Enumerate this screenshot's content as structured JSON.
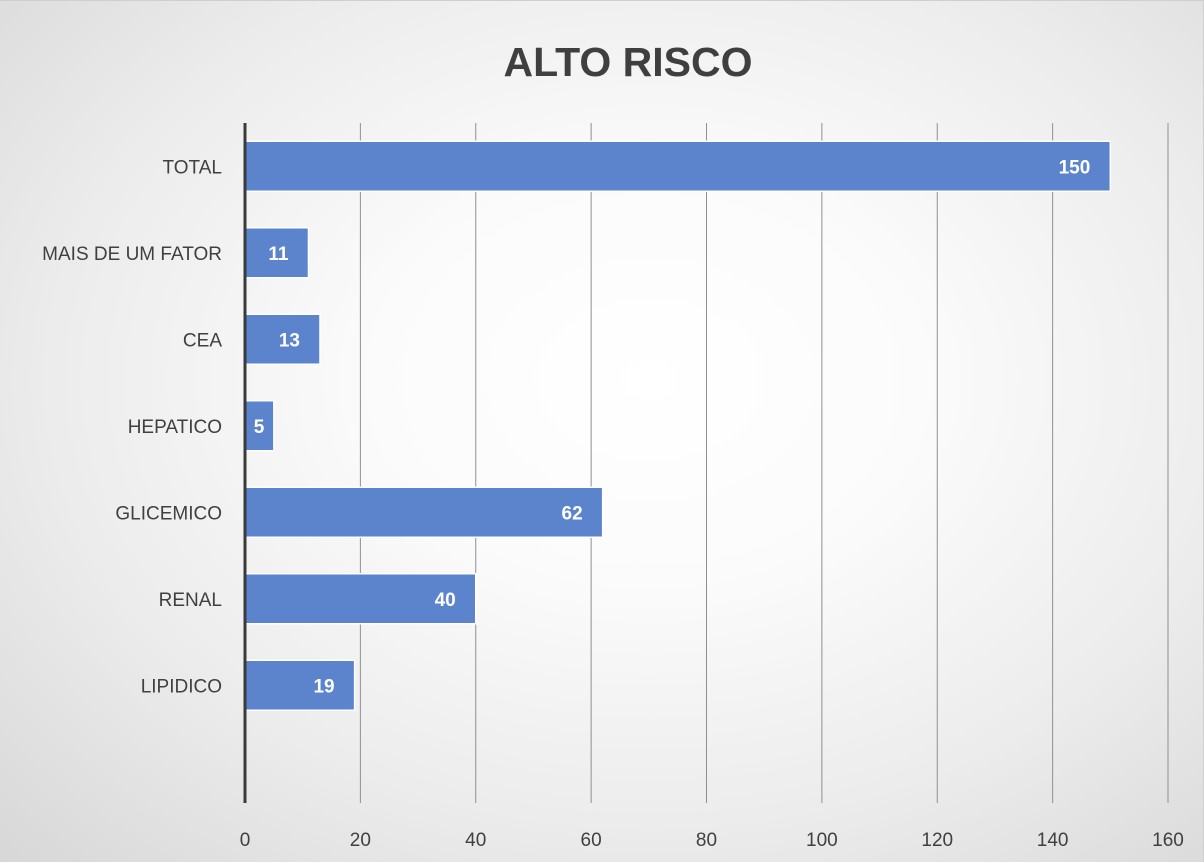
{
  "chart_data": {
    "type": "bar",
    "orientation": "horizontal",
    "title": "ALTO RISCO",
    "categories": [
      "TOTAL",
      "MAIS DE UM FATOR",
      "CEA",
      "HEPATICO",
      "GLICEMICO",
      "RENAL",
      "LIPIDICO"
    ],
    "values": [
      150,
      11,
      13,
      5,
      62,
      40,
      19
    ],
    "data_labels": [
      "150",
      "11",
      "13",
      "5",
      "62",
      "40",
      "19"
    ],
    "xlim": [
      0,
      160
    ],
    "xticks": [
      0,
      20,
      40,
      60,
      80,
      100,
      120,
      140,
      160
    ],
    "xlabel": "",
    "ylabel": "",
    "grid": true,
    "legend": "none",
    "bar_color": "#5b84cc"
  }
}
